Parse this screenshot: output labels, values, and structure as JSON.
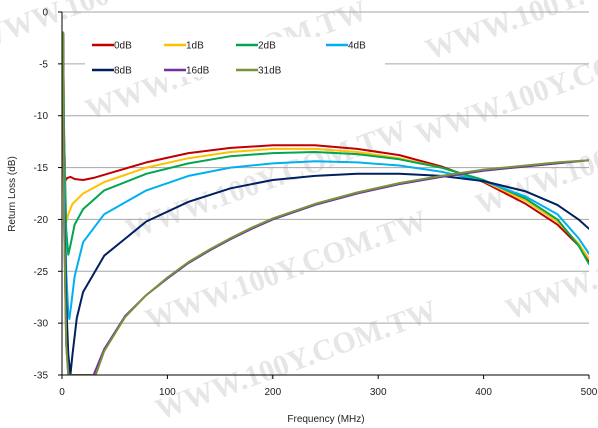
{
  "watermark": "WWW.100Y.COM.TW",
  "chart_data": {
    "type": "line",
    "title": "",
    "xlabel": "Frequency (MHz)",
    "ylabel": "Return Loss (dB)",
    "xlim": [
      0,
      500
    ],
    "ylim": [
      -35,
      0
    ],
    "xticks": [
      0,
      100,
      200,
      300,
      400,
      500
    ],
    "yticks": [
      0,
      -5,
      -10,
      -15,
      -20,
      -25,
      -30,
      -35
    ],
    "grid": "horizontal",
    "legend_position": "top-left",
    "series": [
      {
        "name": "0dB",
        "color": "#c00000",
        "points": [
          [
            1,
            -2
          ],
          [
            2,
            -12
          ],
          [
            3,
            -16.3
          ],
          [
            5,
            -16
          ],
          [
            8,
            -15.9
          ],
          [
            12,
            -16.1
          ],
          [
            20,
            -16.2
          ],
          [
            30,
            -16
          ],
          [
            50,
            -15.4
          ],
          [
            80,
            -14.5
          ],
          [
            120,
            -13.6
          ],
          [
            160,
            -13.1
          ],
          [
            200,
            -12.85
          ],
          [
            240,
            -12.85
          ],
          [
            280,
            -13.2
          ],
          [
            320,
            -13.8
          ],
          [
            360,
            -14.9
          ],
          [
            400,
            -16.4
          ],
          [
            440,
            -18.5
          ],
          [
            470,
            -20.5
          ],
          [
            490,
            -22.5
          ],
          [
            500,
            -24
          ]
        ]
      },
      {
        "name": "1dB",
        "color": "#ffc000",
        "points": [
          [
            1,
            -2
          ],
          [
            2,
            -12
          ],
          [
            4,
            -20.3
          ],
          [
            6,
            -19.5
          ],
          [
            10,
            -18.5
          ],
          [
            20,
            -17.5
          ],
          [
            40,
            -16.4
          ],
          [
            80,
            -15
          ],
          [
            120,
            -14.1
          ],
          [
            160,
            -13.5
          ],
          [
            200,
            -13.2
          ],
          [
            240,
            -13.2
          ],
          [
            280,
            -13.5
          ],
          [
            320,
            -14.1
          ],
          [
            360,
            -15
          ],
          [
            400,
            -16.3
          ],
          [
            440,
            -18.2
          ],
          [
            470,
            -20.2
          ],
          [
            490,
            -22.3
          ],
          [
            500,
            -23.8
          ]
        ]
      },
      {
        "name": "2dB",
        "color": "#00a650",
        "points": [
          [
            1,
            -2
          ],
          [
            2,
            -12
          ],
          [
            4,
            -21
          ],
          [
            6,
            -23.4
          ],
          [
            8,
            -22.5
          ],
          [
            12,
            -20.5
          ],
          [
            20,
            -19
          ],
          [
            40,
            -17.2
          ],
          [
            80,
            -15.6
          ],
          [
            120,
            -14.6
          ],
          [
            160,
            -13.9
          ],
          [
            200,
            -13.6
          ],
          [
            240,
            -13.5
          ],
          [
            280,
            -13.7
          ],
          [
            320,
            -14.2
          ],
          [
            360,
            -15
          ],
          [
            400,
            -16.2
          ],
          [
            440,
            -18
          ],
          [
            470,
            -20
          ],
          [
            490,
            -22.5
          ],
          [
            500,
            -24.3
          ]
        ]
      },
      {
        "name": "4dB",
        "color": "#00b0f0",
        "points": [
          [
            1,
            -2
          ],
          [
            2,
            -14
          ],
          [
            4,
            -25
          ],
          [
            6,
            -29
          ],
          [
            7,
            -29.6
          ],
          [
            9,
            -28
          ],
          [
            12,
            -25.5
          ],
          [
            20,
            -22.2
          ],
          [
            40,
            -19.5
          ],
          [
            80,
            -17.2
          ],
          [
            120,
            -15.8
          ],
          [
            160,
            -15
          ],
          [
            200,
            -14.6
          ],
          [
            240,
            -14.4
          ],
          [
            280,
            -14.5
          ],
          [
            320,
            -14.8
          ],
          [
            360,
            -15.4
          ],
          [
            400,
            -16.3
          ],
          [
            440,
            -17.8
          ],
          [
            470,
            -19.5
          ],
          [
            490,
            -21.8
          ],
          [
            500,
            -23.3
          ]
        ]
      },
      {
        "name": "8dB",
        "color": "#002060",
        "points": [
          [
            1,
            -2
          ],
          [
            2,
            -18
          ],
          [
            4,
            -28
          ],
          [
            6,
            -33
          ],
          [
            8,
            -35
          ],
          [
            10,
            -33
          ],
          [
            14,
            -29.5
          ],
          [
            20,
            -27
          ],
          [
            40,
            -23.5
          ],
          [
            80,
            -20.2
          ],
          [
            120,
            -18.3
          ],
          [
            160,
            -17
          ],
          [
            200,
            -16.2
          ],
          [
            240,
            -15.8
          ],
          [
            280,
            -15.6
          ],
          [
            320,
            -15.6
          ],
          [
            360,
            -15.8
          ],
          [
            400,
            -16.3
          ],
          [
            440,
            -17.3
          ],
          [
            470,
            -18.6
          ],
          [
            490,
            -20
          ],
          [
            500,
            -20.9
          ]
        ]
      },
      {
        "name": "16dB",
        "color": "#7030a0",
        "points": [
          [
            1,
            -2
          ],
          [
            2,
            -20
          ],
          [
            4,
            -32
          ],
          [
            6,
            -35
          ],
          [
            30,
            -35
          ],
          [
            40,
            -32.5
          ],
          [
            60,
            -29.3
          ],
          [
            80,
            -27.3
          ],
          [
            100,
            -25.7
          ],
          [
            120,
            -24.2
          ],
          [
            140,
            -23
          ],
          [
            160,
            -21.9
          ],
          [
            180,
            -20.9
          ],
          [
            200,
            -20
          ],
          [
            240,
            -18.6
          ],
          [
            280,
            -17.5
          ],
          [
            320,
            -16.6
          ],
          [
            360,
            -15.9
          ],
          [
            400,
            -15.3
          ],
          [
            440,
            -14.9
          ],
          [
            470,
            -14.6
          ],
          [
            500,
            -14.3
          ]
        ]
      },
      {
        "name": "31dB",
        "color": "#77933c",
        "points": [
          [
            1,
            -2
          ],
          [
            2,
            -20
          ],
          [
            4,
            -32
          ],
          [
            6,
            -35
          ],
          [
            32,
            -35
          ],
          [
            40,
            -32.7
          ],
          [
            60,
            -29.4
          ],
          [
            80,
            -27.3
          ],
          [
            100,
            -25.6
          ],
          [
            120,
            -24.1
          ],
          [
            140,
            -22.9
          ],
          [
            160,
            -21.8
          ],
          [
            180,
            -20.8
          ],
          [
            200,
            -19.9
          ],
          [
            240,
            -18.5
          ],
          [
            280,
            -17.4
          ],
          [
            320,
            -16.5
          ],
          [
            360,
            -15.8
          ],
          [
            400,
            -15.2
          ],
          [
            440,
            -14.8
          ],
          [
            470,
            -14.5
          ],
          [
            500,
            -14.3
          ]
        ]
      }
    ]
  }
}
